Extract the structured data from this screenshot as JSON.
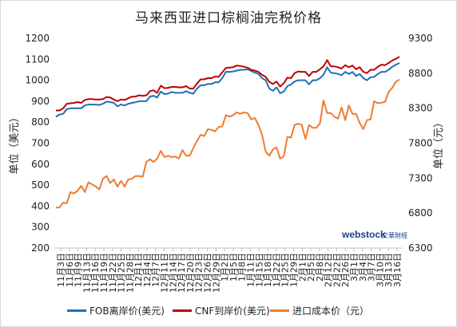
{
  "chart_data": {
    "type": "line",
    "title": "马来西亚进口棕榈油完税价格",
    "ylabel_left": "单位（美元）",
    "ylabel_right": "单位（元）",
    "ylim_left": [
      200,
      1200
    ],
    "ylim_right": [
      6300,
      9300
    ],
    "yticks_left": [
      200,
      300,
      400,
      500,
      600,
      700,
      800,
      900,
      1000,
      1100,
      1200
    ],
    "yticks_right": [
      6300,
      6800,
      7300,
      7800,
      8300,
      8800,
      9300
    ],
    "xtick_labels": [
      "11月3日",
      "11月6日",
      "11月9日",
      "11月13日",
      "11月16日",
      "11月19日",
      "11月22日",
      "11月25日",
      "11月28日",
      "12月1日",
      "12月4日",
      "12月7日",
      "12月11日",
      "12月14日",
      "12月17日",
      "12月20日",
      "12月23日",
      "12月26日",
      "12月29日",
      "1月2日",
      "1月5日",
      "1月8日",
      "1月11日",
      "1月15日",
      "1月18日",
      "1月22日",
      "1月25日",
      "1月29日",
      "2月1日",
      "2月5日",
      "2月8日",
      "2月12日",
      "2月22日",
      "2月26日",
      "3月1日",
      "3月4日",
      "3月7日",
      "3月10日",
      "3月13日",
      "3月16日"
    ],
    "grid": false,
    "legend_position": "bottom",
    "series": [
      {
        "name": "FOB离岸价(美元)",
        "axis": "left",
        "color": "#1f6fb8",
        "values": [
          826,
          836,
          840,
          862,
          866,
          866,
          866,
          866,
          880,
          884,
          884,
          884,
          882,
          888,
          898,
          896,
          892,
          876,
          884,
          880,
          888,
          892,
          895,
          900,
          900,
          900,
          922,
          926,
          918,
          946,
          934,
          936,
          944,
          940,
          940,
          940,
          948,
          940,
          936,
          960,
          976,
          976,
          982,
          982,
          990,
          990,
          1010,
          1040,
          1040,
          1042,
          1046,
          1050,
          1050,
          1052,
          1044,
          1036,
          1030,
          1010,
          1000,
          960,
          950,
          966,
          938,
          946,
          972,
          980,
          994,
          1000,
          1000,
          1000,
          980,
          1000,
          1000,
          1010,
          1026,
          1062,
          1036,
          1034,
          1030,
          1024,
          1040,
          1030,
          1040,
          1020,
          1030,
          1010,
          1000,
          1014,
          1016,
          1030,
          1040,
          1040,
          1050,
          1064,
          1074,
          1082
        ]
      },
      {
        "name": "CNF到岸价(美元)",
        "axis": "left",
        "color": "#c00000",
        "values": [
          856,
          856,
          866,
          888,
          890,
          892,
          896,
          892,
          906,
          910,
          910,
          908,
          908,
          910,
          920,
          918,
          908,
          900,
          908,
          906,
          914,
          922,
          922,
          928,
          926,
          928,
          948,
          952,
          940,
          974,
          962,
          964,
          968,
          968,
          966,
          966,
          972,
          960,
          960,
          984,
          1004,
          1004,
          1010,
          1010,
          1018,
          1016,
          1038,
          1058,
          1060,
          1062,
          1070,
          1068,
          1064,
          1060,
          1050,
          1046,
          1040,
          1026,
          1016,
          992,
          982,
          994,
          970,
          986,
          1012,
          1010,
          1034,
          1042,
          1040,
          1040,
          1020,
          1040,
          1040,
          1052,
          1066,
          1096,
          1066,
          1066,
          1062,
          1056,
          1072,
          1062,
          1070,
          1052,
          1062,
          1040,
          1034,
          1050,
          1050,
          1064,
          1074,
          1072,
          1082,
          1094,
          1102,
          1112
        ]
      },
      {
        "name": "进口成本价（元）",
        "axis": "right",
        "color": "#ed7d31",
        "values": [
          6880,
          6880,
          6950,
          6940,
          7100,
          7080,
          7120,
          7190,
          7100,
          7240,
          7210,
          7180,
          7140,
          7290,
          7330,
          7230,
          7280,
          7180,
          7260,
          7180,
          7280,
          7290,
          7330,
          7330,
          7320,
          7530,
          7570,
          7530,
          7580,
          7690,
          7600,
          7620,
          7600,
          7610,
          7580,
          7700,
          7620,
          7620,
          7730,
          7830,
          7920,
          7900,
          8000,
          7990,
          7970,
          8030,
          8040,
          8200,
          8180,
          8200,
          8240,
          8220,
          8240,
          8230,
          8140,
          8160,
          8060,
          7920,
          7680,
          7620,
          7710,
          7740,
          7580,
          7610,
          7890,
          7880,
          8060,
          8080,
          8060,
          7860,
          8060,
          8020,
          8020,
          8080,
          8410,
          8230,
          8230,
          8180,
          8150,
          8310,
          8130,
          8340,
          8220,
          8220,
          8090,
          8000,
          8130,
          8140,
          8400,
          8370,
          8380,
          8390,
          8530,
          8590,
          8680,
          8710
        ]
      }
    ]
  },
  "watermark": {
    "logo": "webstock",
    "sub": "文華財經"
  }
}
